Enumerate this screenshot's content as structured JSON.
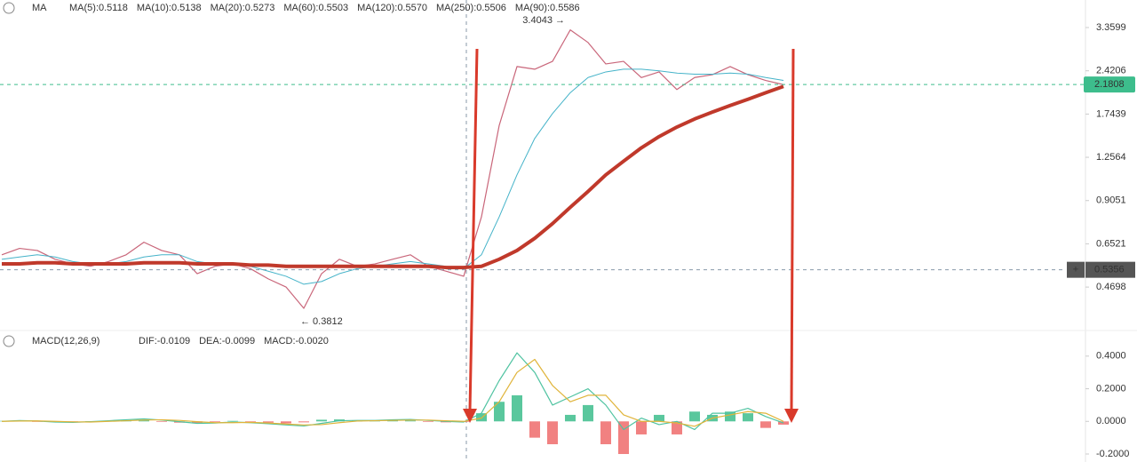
{
  "chart_data": [
    {
      "type": "line",
      "log_scale": true,
      "header": "MA",
      "legend": [
        {
          "text": "MA(5):0.5118",
          "color": "#8e2e72"
        },
        {
          "text": "MA(10):0.5138",
          "color": "#e0b43a"
        },
        {
          "text": "MA(20):0.5273",
          "color": "#9a9a9a"
        },
        {
          "text": "MA(60):0.5503",
          "color": "#45b3c9"
        },
        {
          "text": "MA(120):0.5570",
          "color": "#4fc3a1"
        },
        {
          "text": "MA(250):0.5506",
          "color": "#c0392b"
        },
        {
          "text": "MA(90):0.5586",
          "color": "#3a5ba0"
        }
      ],
      "ylim": [
        0.338,
        4.14
      ],
      "yticks": [
        3.3599,
        2.4206,
        1.7439,
        1.2564,
        0.9051,
        0.6521,
        0.4698
      ],
      "last_price": 2.1808,
      "crosshair_price": 0.5356,
      "annotations": [
        {
          "text": "3.4043 →",
          "value": 3.4043,
          "index": 32
        },
        {
          "text": "← 0.3812",
          "value": 0.3812,
          "index": 17
        }
      ],
      "series": [
        {
          "color": "#c9667a",
          "width": 1.2,
          "values": [
            0.6,
            0.63,
            0.62,
            0.58,
            0.56,
            0.55,
            0.57,
            0.6,
            0.66,
            0.62,
            0.6,
            0.52,
            0.55,
            0.56,
            0.54,
            0.5,
            0.47,
            0.4,
            0.52,
            0.58,
            0.55,
            0.56,
            0.58,
            0.6,
            0.55,
            0.53,
            0.51,
            0.8,
            1.6,
            2.5,
            2.45,
            2.6,
            3.3,
            3.0,
            2.55,
            2.6,
            2.3,
            2.4,
            2.1,
            2.3,
            2.35,
            2.5,
            2.35,
            2.25,
            2.18
          ]
        },
        {
          "color": "#45b3c9",
          "width": 1,
          "values": [
            0.58,
            0.59,
            0.6,
            0.59,
            0.57,
            0.56,
            0.56,
            0.57,
            0.59,
            0.6,
            0.6,
            0.57,
            0.56,
            0.56,
            0.55,
            0.53,
            0.51,
            0.48,
            0.49,
            0.52,
            0.54,
            0.55,
            0.56,
            0.57,
            0.56,
            0.55,
            0.54,
            0.6,
            0.8,
            1.1,
            1.45,
            1.75,
            2.05,
            2.3,
            2.4,
            2.45,
            2.45,
            2.42,
            2.38,
            2.36,
            2.36,
            2.38,
            2.36,
            2.3,
            2.25
          ]
        },
        {
          "color": "#c0392b",
          "width": 4,
          "values": [
            0.56,
            0.56,
            0.565,
            0.565,
            0.56,
            0.56,
            0.56,
            0.56,
            0.565,
            0.565,
            0.565,
            0.56,
            0.56,
            0.56,
            0.555,
            0.555,
            0.55,
            0.55,
            0.55,
            0.55,
            0.55,
            0.55,
            0.55,
            0.55,
            0.55,
            0.545,
            0.545,
            0.55,
            0.58,
            0.62,
            0.68,
            0.76,
            0.86,
            0.97,
            1.1,
            1.22,
            1.35,
            1.47,
            1.58,
            1.68,
            1.77,
            1.86,
            1.95,
            2.05,
            2.15
          ]
        }
      ]
    },
    {
      "type": "line",
      "header": "MACD(12,26,9)",
      "legend": [
        {
          "text": "DIF:-0.0109",
          "color": "#4fc3a1"
        },
        {
          "text": "DEA:-0.0099",
          "color": "#e0b43a"
        },
        {
          "text": "MACD:-0.0020",
          "color": "#d9534f"
        }
      ],
      "ylim": [
        -0.249,
        0.557
      ],
      "yticks": [
        {
          "value": 0.4,
          "label": "0.4000"
        },
        {
          "value": 0.2,
          "label": "0.2000"
        },
        {
          "value": 0,
          "label": "0.0000"
        },
        {
          "value": -0.2,
          "label": "-0.2000"
        }
      ],
      "series": [
        {
          "style": "histogram",
          "color": "#3dbd8c",
          "negative_color": "#ef6b6b",
          "values": [
            0.003,
            0.004,
            -0.002,
            -0.004,
            -0.003,
            0.001,
            0.004,
            0.006,
            0.008,
            -0.004,
            -0.008,
            -0.012,
            -0.004,
            0.003,
            -0.004,
            -0.008,
            -0.012,
            -0.006,
            0.01,
            0.012,
            0.004,
            0.003,
            0.006,
            0.005,
            -0.004,
            -0.006,
            -0.004,
            0.05,
            0.12,
            0.16,
            -0.1,
            -0.14,
            0.04,
            0.1,
            -0.14,
            -0.2,
            -0.08,
            0.04,
            -0.08,
            0.06,
            0.04,
            0.06,
            0.05,
            -0.04,
            -0.02
          ]
        },
        {
          "color": "#4fc3a1",
          "width": 1.2,
          "values": [
            0.0,
            0.005,
            0.002,
            -0.004,
            -0.006,
            -0.002,
            0.004,
            0.01,
            0.015,
            0.008,
            -0.002,
            -0.012,
            -0.01,
            -0.004,
            -0.008,
            -0.014,
            -0.022,
            -0.028,
            -0.012,
            0.004,
            0.006,
            0.006,
            0.01,
            0.012,
            0.006,
            0.0,
            -0.004,
            0.05,
            0.25,
            0.42,
            0.3,
            0.1,
            0.15,
            0.2,
            0.1,
            -0.05,
            0.02,
            -0.02,
            0.0,
            -0.05,
            0.05,
            0.05,
            0.08,
            0.03,
            -0.01
          ]
        },
        {
          "color": "#e0b43a",
          "width": 1.2,
          "values": [
            0.0,
            0.002,
            0.003,
            0.0,
            -0.003,
            -0.004,
            0.0,
            0.004,
            0.008,
            0.01,
            0.006,
            -0.002,
            -0.008,
            -0.008,
            -0.006,
            -0.01,
            -0.016,
            -0.022,
            -0.02,
            -0.008,
            0.002,
            0.004,
            0.006,
            0.008,
            0.008,
            0.004,
            0.0,
            0.02,
            0.12,
            0.3,
            0.38,
            0.22,
            0.12,
            0.16,
            0.16,
            0.04,
            0.0,
            0.0,
            -0.01,
            -0.03,
            0.02,
            0.04,
            0.06,
            0.05,
            0.0
          ]
        }
      ]
    }
  ]
}
